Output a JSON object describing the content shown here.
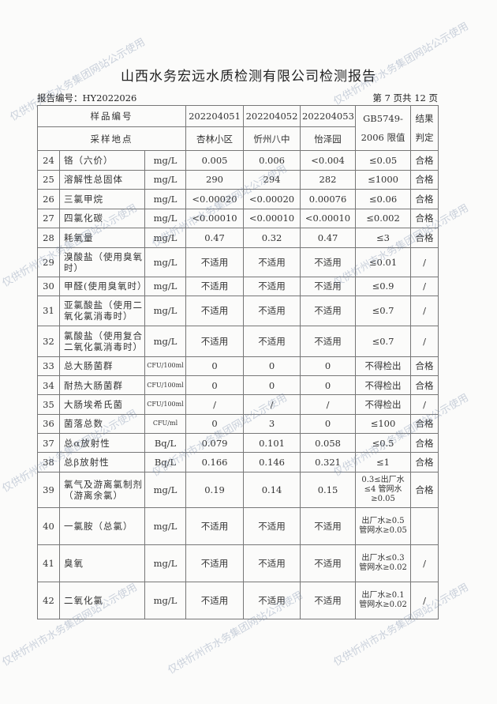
{
  "title": "山西水务宏远水质检测有限公司检测报告",
  "report_no": "报告编号：HY2022026",
  "page_info": "第 7 页共 12 页",
  "header": {
    "sample_no_label": "样品编号",
    "location_label": "采样地点",
    "samples": [
      "202204051",
      "202204052",
      "202204053"
    ],
    "locations": [
      "杏林小区",
      "忻州八中",
      "怡泽园"
    ],
    "limit_label_1": "GB5749-",
    "limit_label_2": "2006 限值",
    "result_label_1": "结果",
    "result_label_2": "判定"
  },
  "rows": [
    {
      "no": "24",
      "name": "铬（六价）",
      "unit": "mg/L",
      "v1": "0.005",
      "v2": "0.006",
      "v3": "<0.004",
      "limit": "≤0.05",
      "result": "合格"
    },
    {
      "no": "25",
      "name": "溶解性总固体",
      "unit": "mg/L",
      "v1": "290",
      "v2": "294",
      "v3": "282",
      "limit": "≤1000",
      "result": "合格"
    },
    {
      "no": "26",
      "name": "三氯甲烷",
      "unit": "mg/L",
      "v1": "<0.00020",
      "v2": "<0.00020",
      "v3": "0.00076",
      "limit": "≤0.06",
      "result": "合格"
    },
    {
      "no": "27",
      "name": "四氯化碳",
      "unit": "mg/L",
      "v1": "<0.00010",
      "v2": "<0.00010",
      "v3": "<0.00010",
      "limit": "≤0.002",
      "result": "合格"
    },
    {
      "no": "28",
      "name": "耗氧量",
      "unit": "mg/L",
      "v1": "0.47",
      "v2": "0.32",
      "v3": "0.47",
      "limit": "≤3",
      "result": "合格"
    },
    {
      "no": "29",
      "name": "溴酸盐（使用臭氧时）",
      "unit": "mg/L",
      "v1": "不适用",
      "v2": "不适用",
      "v3": "不适用",
      "limit": "≤0.01",
      "result": "/"
    },
    {
      "no": "30",
      "name": "甲醛(使用臭氧时）",
      "unit": "mg/L",
      "v1": "不适用",
      "v2": "不适用",
      "v3": "不适用",
      "limit": "≤0.9",
      "result": "/"
    },
    {
      "no": "31",
      "name": "亚氯酸盐（使用二氧化氯消毒时）",
      "unit": "mg/L",
      "v1": "不适用",
      "v2": "不适用",
      "v3": "不适用",
      "limit": "≤0.7",
      "result": "/"
    },
    {
      "no": "32",
      "name": "氯酸盐（使用复合二氧化氯消毒时）",
      "unit": "mg/L",
      "v1": "不适用",
      "v2": "不适用",
      "v3": "不适用",
      "limit": "≤0.7",
      "result": "/"
    },
    {
      "no": "33",
      "name": "总大肠菌群",
      "unit": "CFU/100ml",
      "v1": "0",
      "v2": "0",
      "v3": "0",
      "limit": "不得检出",
      "result": "合格"
    },
    {
      "no": "34",
      "name": "耐热大肠菌群",
      "unit": "CFU/100ml",
      "v1": "0",
      "v2": "0",
      "v3": "0",
      "limit": "不得检出",
      "result": "合格"
    },
    {
      "no": "35",
      "name": "大肠埃希氏菌",
      "unit": "CFU/100ml",
      "v1": "/",
      "v2": "/",
      "v3": "/",
      "limit": "不得检出",
      "result": "/"
    },
    {
      "no": "36",
      "name": "菌落总数",
      "unit": "CFU/ml",
      "v1": "0",
      "v2": "3",
      "v3": "0",
      "limit": "≤100",
      "result": "合格"
    },
    {
      "no": "37",
      "name": "总α放射性",
      "unit": "Bq/L",
      "v1": "0.079",
      "v2": "0.101",
      "v3": "0.058",
      "limit": "≤0.5",
      "result": "合格"
    },
    {
      "no": "38",
      "name": "总β放射性",
      "unit": "Bq/L",
      "v1": "0.166",
      "v2": "0.146",
      "v3": "0.321",
      "limit": "≤1",
      "result": "合格"
    },
    {
      "no": "39",
      "name": "氯气及游离氯制剂（游离余氯）",
      "unit": "mg/L",
      "v1": "0.19",
      "v2": "0.14",
      "v3": "0.15",
      "limit": "0.3≤出厂水≤4 管网水≥0.05",
      "result": "合格"
    },
    {
      "no": "40",
      "name": "一氯胺（总氯）",
      "unit": "mg/L",
      "v1": "不适用",
      "v2": "不适用",
      "v3": "不适用",
      "limit": "出厂水≥0.5 管网水≥0.05",
      "result": ""
    },
    {
      "no": "41",
      "name": "臭氧",
      "unit": "mg/L",
      "v1": "不适用",
      "v2": "不适用",
      "v3": "不适用",
      "limit": "出厂水≤0.3 管网水≥0.02",
      "result": "/"
    },
    {
      "no": "42",
      "name": "二氧化氯",
      "unit": "mg/L",
      "v1": "不适用",
      "v2": "不适用",
      "v3": "不适用",
      "limit": "出厂水≥0.1 管网水≥0.02",
      "result": "/"
    }
  ],
  "watermark": "仅供忻州市水务集团网站公示使用"
}
